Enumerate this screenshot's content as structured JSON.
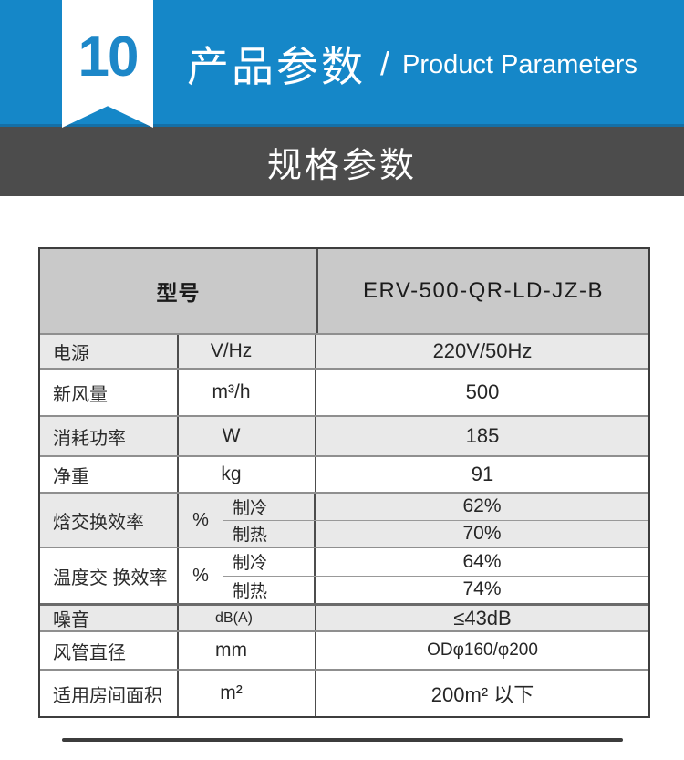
{
  "colors": {
    "accent": "#1587c8",
    "band_dark": "#4c4c4c",
    "table_header_bg": "#c9c9c9",
    "row_shade": "#e9e9e9"
  },
  "header": {
    "badge_number": "10",
    "title_cn": "产品参数",
    "slash": "/",
    "title_en": "Product Parameters"
  },
  "section": {
    "title": "规格参数"
  },
  "table": {
    "model": {
      "label": "型号",
      "value": "ERV-500-QR-LD-JZ-B"
    },
    "rows": [
      {
        "label": "电源",
        "unit": "V/Hz",
        "value": "220V/50Hz"
      },
      {
        "label": "新风量",
        "unit": "m³/h",
        "value": "500"
      },
      {
        "label": "消耗功率",
        "unit": "W",
        "value": "185"
      },
      {
        "label": "净重",
        "unit": "kg",
        "value": "91"
      }
    ],
    "efficiency": [
      {
        "label": "焓交换效率",
        "unit": "%",
        "modes": [
          {
            "mode": "制冷",
            "value": "62%"
          },
          {
            "mode": "制热",
            "value": "70%"
          }
        ]
      },
      {
        "label": "温度交 换效率",
        "unit": "%",
        "modes": [
          {
            "mode": "制冷",
            "value": "64%"
          },
          {
            "mode": "制热",
            "value": "74%"
          }
        ]
      }
    ],
    "bottom_rows": [
      {
        "label": "噪音",
        "unit": "dB(A)",
        "value": "≤43dB"
      },
      {
        "label": "风管直径",
        "unit": "mm",
        "value": "ODφ160/φ200"
      },
      {
        "label": "适用房间面积",
        "unit": "m²",
        "value": "200m² 以下"
      }
    ]
  }
}
